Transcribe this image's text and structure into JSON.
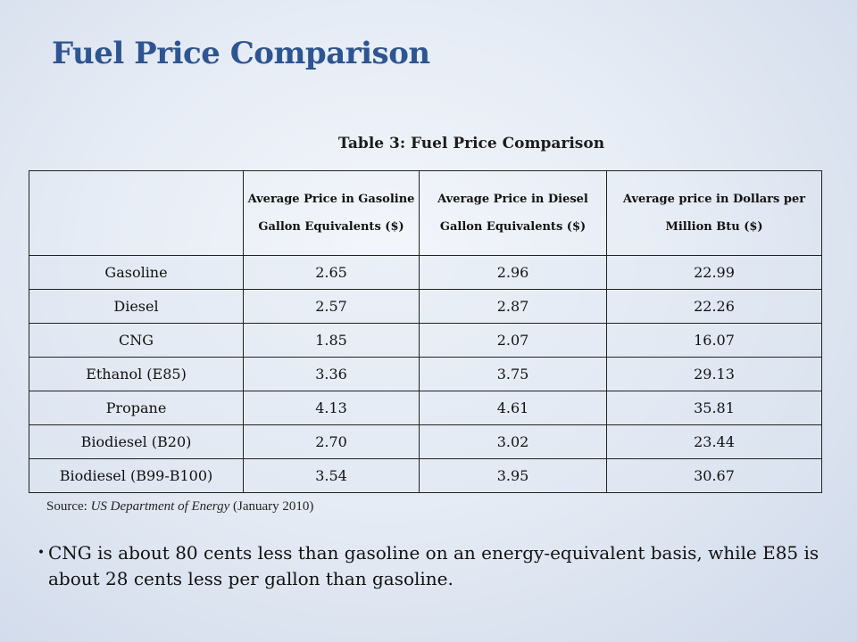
{
  "slide": {
    "title": "Fuel Price Comparison"
  },
  "table": {
    "caption": "Table 3: Fuel Price Comparison",
    "headers": [
      "",
      "Average Price in Gasoline Gallon Equivalents ($)",
      "Average Price in Diesel Gallon Equivalents ($)",
      "Average price in Dollars per Million Btu ($)"
    ],
    "rows": [
      [
        "Gasoline",
        "2.65",
        "2.96",
        "22.99"
      ],
      [
        "Diesel",
        "2.57",
        "2.87",
        "22.26"
      ],
      [
        "CNG",
        "1.85",
        "2.07",
        "16.07"
      ],
      [
        "Ethanol (E85)",
        "3.36",
        "3.75",
        "29.13"
      ],
      [
        "Propane",
        "4.13",
        "4.61",
        "35.81"
      ],
      [
        "Biodiesel (B20)",
        "2.70",
        "3.02",
        "23.44"
      ],
      [
        "Biodiesel (B99-B100)",
        "3.54",
        "3.95",
        "30.67"
      ]
    ]
  },
  "source": {
    "prefix": "Source: ",
    "publisher": "US Department of Energy",
    "date": " (January 2010)"
  },
  "bullets": [
    {
      "icon": "bullet-dot",
      "text": "CNG is about 80 cents less than gasoline on an energy-equivalent basis, while E85 is about 28 cents less per gallon than gasoline."
    }
  ]
}
